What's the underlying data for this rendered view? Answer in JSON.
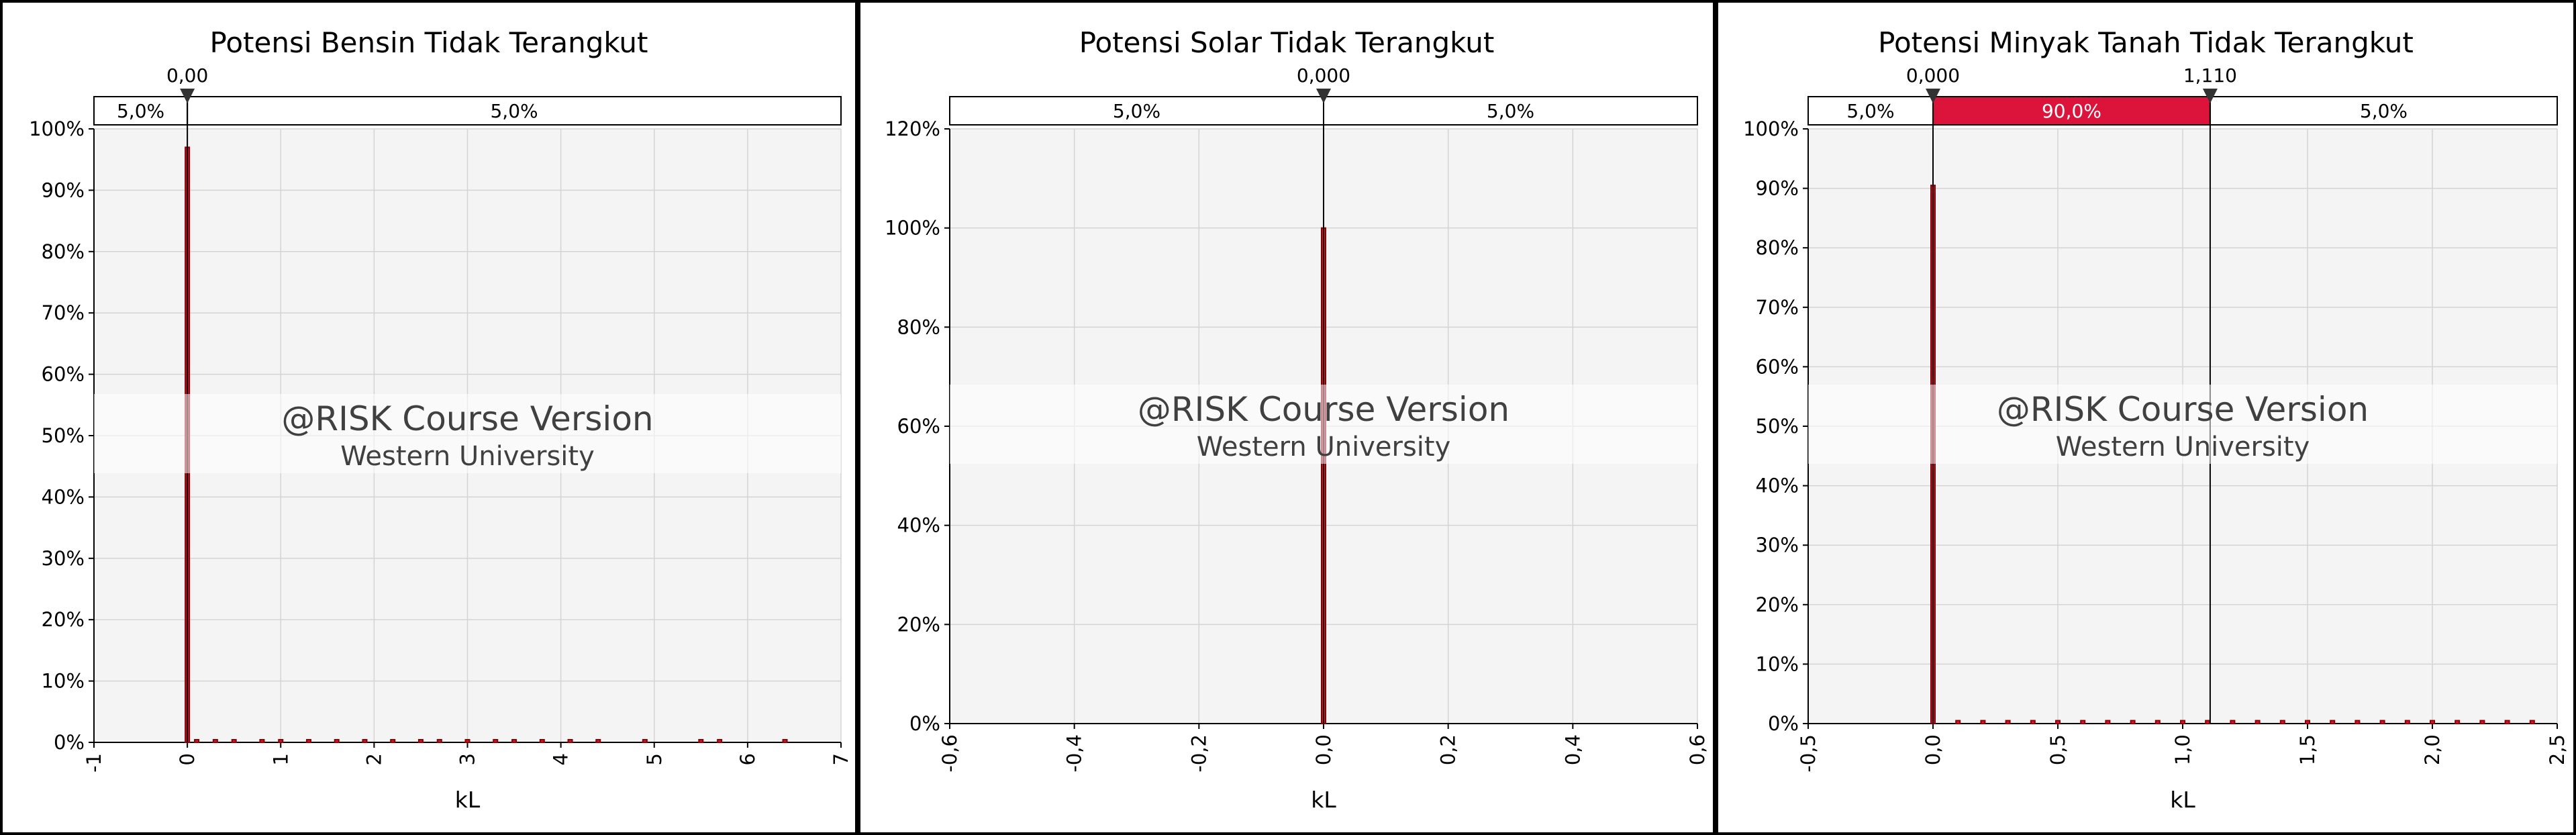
{
  "colors": {
    "accent": "#DC143C",
    "bar_fill": "#DC143C",
    "bar_edge": "#8B0000",
    "plot_bg": "#F4F4F4",
    "grid": "#D4D4D4",
    "frame": "#000000"
  },
  "watermark": {
    "line1": "@RISK Course Version",
    "line2": "Western University"
  },
  "chart_data": [
    {
      "type": "bar",
      "title": "Potensi Bensin Tidak Terangkut",
      "xlabel": "kL",
      "ylabel": "",
      "xlim": [
        -1,
        7
      ],
      "ylim": [
        0,
        1
      ],
      "x_ticks": [
        -1,
        0,
        1,
        2,
        3,
        4,
        5,
        6,
        7
      ],
      "x_tick_labels": [
        "-1",
        "0",
        "1",
        "2",
        "3",
        "4",
        "5",
        "6",
        "7"
      ],
      "y_ticks": [
        0,
        0.1,
        0.2,
        0.3,
        0.4,
        0.5,
        0.6,
        0.7,
        0.8,
        0.9,
        1.0
      ],
      "y_tick_labels": [
        "0%",
        "10%",
        "20%",
        "30%",
        "40%",
        "50%",
        "60%",
        "70%",
        "80%",
        "90%",
        "100%"
      ],
      "grid": true,
      "delimiters": [
        {
          "value": 0,
          "label": "0,00"
        }
      ],
      "bands": [
        {
          "from": -1,
          "to": 0,
          "label": "5,0%",
          "highlight": false
        },
        {
          "from": 0,
          "to": 7,
          "label": "5,0%",
          "highlight": false
        }
      ],
      "bars": [
        {
          "x": 0,
          "value": 0.97
        },
        {
          "x": 0.1,
          "value": 0.004
        },
        {
          "x": 0.3,
          "value": 0.004
        },
        {
          "x": 0.5,
          "value": 0.004
        },
        {
          "x": 0.8,
          "value": 0.004
        },
        {
          "x": 1.0,
          "value": 0.004
        },
        {
          "x": 1.3,
          "value": 0.004
        },
        {
          "x": 1.6,
          "value": 0.004
        },
        {
          "x": 1.9,
          "value": 0.004
        },
        {
          "x": 2.2,
          "value": 0.004
        },
        {
          "x": 2.5,
          "value": 0.004
        },
        {
          "x": 2.7,
          "value": 0.004
        },
        {
          "x": 3.0,
          "value": 0.004
        },
        {
          "x": 3.3,
          "value": 0.004
        },
        {
          "x": 3.5,
          "value": 0.004
        },
        {
          "x": 3.8,
          "value": 0.004
        },
        {
          "x": 4.1,
          "value": 0.004
        },
        {
          "x": 4.4,
          "value": 0.004
        },
        {
          "x": 4.9,
          "value": 0.004
        },
        {
          "x": 5.5,
          "value": 0.004
        },
        {
          "x": 5.7,
          "value": 0.004
        },
        {
          "x": 6.4,
          "value": 0.004
        }
      ]
    },
    {
      "type": "bar",
      "title": "Potensi Solar Tidak Terangkut",
      "xlabel": "kL",
      "ylabel": "",
      "xlim": [
        -0.6,
        0.6
      ],
      "ylim": [
        0,
        1.2
      ],
      "x_ticks": [
        -0.6,
        -0.4,
        -0.2,
        0,
        0.2,
        0.4,
        0.6
      ],
      "x_tick_labels": [
        "-0,6",
        "-0,4",
        "-0,2",
        "0,0",
        "0,2",
        "0,4",
        "0,6"
      ],
      "y_ticks": [
        0,
        0.2,
        0.4,
        0.6,
        0.8,
        1.0,
        1.2
      ],
      "y_tick_labels": [
        "0%",
        "20%",
        "40%",
        "60%",
        "80%",
        "100%",
        "120%"
      ],
      "grid": true,
      "delimiters": [
        {
          "value": 0,
          "label": "0,000"
        }
      ],
      "bands": [
        {
          "from": -0.6,
          "to": 0,
          "label": "5,0%",
          "highlight": false
        },
        {
          "from": 0,
          "to": 0.6,
          "label": "5,0%",
          "highlight": false
        }
      ],
      "bars": [
        {
          "x": 0,
          "value": 1.0
        }
      ]
    },
    {
      "type": "bar",
      "title": "Potensi Minyak Tanah Tidak Terangkut",
      "xlabel": "kL",
      "ylabel": "",
      "xlim": [
        -0.5,
        2.5
      ],
      "ylim": [
        0,
        1
      ],
      "x_ticks": [
        -0.5,
        0,
        0.5,
        1.0,
        1.5,
        2.0,
        2.5
      ],
      "x_tick_labels": [
        "-0,5",
        "0,0",
        "0,5",
        "1,0",
        "1,5",
        "2,0",
        "2,5"
      ],
      "y_ticks": [
        0,
        0.1,
        0.2,
        0.3,
        0.4,
        0.5,
        0.6,
        0.7,
        0.8,
        0.9,
        1.0
      ],
      "y_tick_labels": [
        "0%",
        "10%",
        "20%",
        "30%",
        "40%",
        "50%",
        "60%",
        "70%",
        "80%",
        "90%",
        "100%"
      ],
      "grid": true,
      "delimiters": [
        {
          "value": 0,
          "label": "0,000"
        },
        {
          "value": 1.11,
          "label": "1,110"
        }
      ],
      "bands": [
        {
          "from": -0.5,
          "to": 0,
          "label": "5,0%",
          "highlight": false
        },
        {
          "from": 0,
          "to": 1.11,
          "label": "90,0%",
          "highlight": true
        },
        {
          "from": 1.11,
          "to": 2.5,
          "label": "5,0%",
          "highlight": false
        }
      ],
      "bars": [
        {
          "x": 0,
          "value": 0.905
        },
        {
          "x": 0.1,
          "value": 0.005
        },
        {
          "x": 0.2,
          "value": 0.005
        },
        {
          "x": 0.3,
          "value": 0.005
        },
        {
          "x": 0.4,
          "value": 0.005
        },
        {
          "x": 0.5,
          "value": 0.005
        },
        {
          "x": 0.6,
          "value": 0.005
        },
        {
          "x": 0.7,
          "value": 0.005
        },
        {
          "x": 0.8,
          "value": 0.005
        },
        {
          "x": 0.9,
          "value": 0.005
        },
        {
          "x": 1.0,
          "value": 0.005
        },
        {
          "x": 1.1,
          "value": 0.005
        },
        {
          "x": 1.2,
          "value": 0.005
        },
        {
          "x": 1.3,
          "value": 0.005
        },
        {
          "x": 1.4,
          "value": 0.005
        },
        {
          "x": 1.5,
          "value": 0.005
        },
        {
          "x": 1.6,
          "value": 0.005
        },
        {
          "x": 1.7,
          "value": 0.005
        },
        {
          "x": 1.8,
          "value": 0.005
        },
        {
          "x": 1.9,
          "value": 0.005
        },
        {
          "x": 2.0,
          "value": 0.005
        },
        {
          "x": 2.1,
          "value": 0.005
        },
        {
          "x": 2.2,
          "value": 0.005
        },
        {
          "x": 2.3,
          "value": 0.005
        },
        {
          "x": 2.4,
          "value": 0.005
        }
      ]
    }
  ]
}
